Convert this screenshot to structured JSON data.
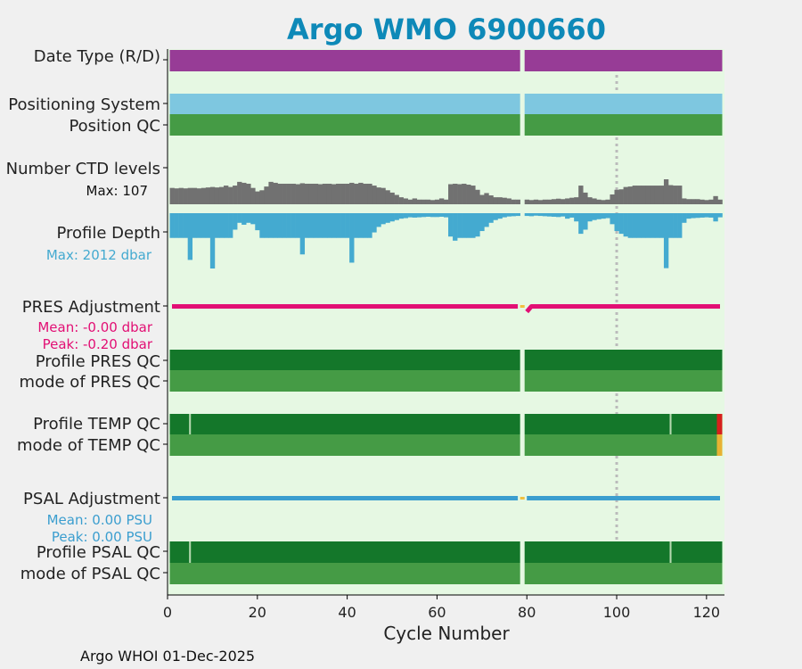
{
  "chart_data": {
    "type": "bar",
    "title": "Argo WMO 6900660",
    "xlabel": "Cycle Number",
    "xlim": [
      0,
      124
    ],
    "x_ticks": [
      "0",
      "20",
      "40",
      "60",
      "80",
      "100",
      "120"
    ],
    "reference_line_x": 100,
    "gap_cycle": 79,
    "rows": {
      "date_type": "Date Type (R/D)",
      "positioning": "Positioning System",
      "position_qc": "Position QC",
      "ctd_levels": "Number CTD levels",
      "ctd_max": "Max: 107",
      "profile_depth": "Profile Depth",
      "depth_max": "Max: 2012 dbar",
      "pres_adj": "PRES Adjustment",
      "pres_mean": "Mean: -0.00 dbar",
      "pres_peak": "Peak: -0.20 dbar",
      "profile_pres_qc": "Profile PRES QC",
      "mode_pres_qc": "mode of PRES QC",
      "profile_temp_qc": "Profile TEMP QC",
      "mode_temp_qc": "mode of TEMP QC",
      "psal_adj": "PSAL Adjustment",
      "psal_mean": "Mean: 0.00 PSU",
      "psal_peak": "Peak: 0.00 PSU",
      "profile_psal_qc": "Profile PSAL QC",
      "mode_psal_qc": "mode of PSAL QC"
    },
    "ctd_levels": [
      {
        "c": 1,
        "v": 70
      },
      {
        "c": 2,
        "v": 68
      },
      {
        "c": 3,
        "v": 70
      },
      {
        "c": 4,
        "v": 68
      },
      {
        "c": 5,
        "v": 70
      },
      {
        "c": 6,
        "v": 70
      },
      {
        "c": 7,
        "v": 68
      },
      {
        "c": 8,
        "v": 70
      },
      {
        "c": 9,
        "v": 72
      },
      {
        "c": 10,
        "v": 74
      },
      {
        "c": 11,
        "v": 72
      },
      {
        "c": 12,
        "v": 74
      },
      {
        "c": 13,
        "v": 80
      },
      {
        "c": 14,
        "v": 74
      },
      {
        "c": 15,
        "v": 80
      },
      {
        "c": 16,
        "v": 96
      },
      {
        "c": 17,
        "v": 92
      },
      {
        "c": 18,
        "v": 88
      },
      {
        "c": 19,
        "v": 70
      },
      {
        "c": 20,
        "v": 55
      },
      {
        "c": 21,
        "v": 60
      },
      {
        "c": 22,
        "v": 76
      },
      {
        "c": 23,
        "v": 96
      },
      {
        "c": 24,
        "v": 92
      },
      {
        "c": 25,
        "v": 88
      },
      {
        "c": 26,
        "v": 88
      },
      {
        "c": 27,
        "v": 88
      },
      {
        "c": 28,
        "v": 88
      },
      {
        "c": 29,
        "v": 86
      },
      {
        "c": 30,
        "v": 90
      },
      {
        "c": 31,
        "v": 88
      },
      {
        "c": 32,
        "v": 88
      },
      {
        "c": 33,
        "v": 88
      },
      {
        "c": 34,
        "v": 86
      },
      {
        "c": 35,
        "v": 88
      },
      {
        "c": 36,
        "v": 88
      },
      {
        "c": 37,
        "v": 86
      },
      {
        "c": 38,
        "v": 88
      },
      {
        "c": 39,
        "v": 88
      },
      {
        "c": 40,
        "v": 88
      },
      {
        "c": 41,
        "v": 92
      },
      {
        "c": 42,
        "v": 88
      },
      {
        "c": 43,
        "v": 92
      },
      {
        "c": 44,
        "v": 88
      },
      {
        "c": 45,
        "v": 88
      },
      {
        "c": 46,
        "v": 80
      },
      {
        "c": 47,
        "v": 72
      },
      {
        "c": 48,
        "v": 70
      },
      {
        "c": 49,
        "v": 60
      },
      {
        "c": 50,
        "v": 50
      },
      {
        "c": 51,
        "v": 40
      },
      {
        "c": 52,
        "v": 30
      },
      {
        "c": 53,
        "v": 25
      },
      {
        "c": 54,
        "v": 20
      },
      {
        "c": 55,
        "v": 25
      },
      {
        "c": 56,
        "v": 20
      },
      {
        "c": 57,
        "v": 20
      },
      {
        "c": 58,
        "v": 20
      },
      {
        "c": 59,
        "v": 18
      },
      {
        "c": 60,
        "v": 20
      },
      {
        "c": 61,
        "v": 25
      },
      {
        "c": 62,
        "v": 20
      },
      {
        "c": 63,
        "v": 86
      },
      {
        "c": 64,
        "v": 88
      },
      {
        "c": 65,
        "v": 86
      },
      {
        "c": 66,
        "v": 88
      },
      {
        "c": 67,
        "v": 84
      },
      {
        "c": 68,
        "v": 80
      },
      {
        "c": 69,
        "v": 62
      },
      {
        "c": 70,
        "v": 40
      },
      {
        "c": 71,
        "v": 48
      },
      {
        "c": 72,
        "v": 38
      },
      {
        "c": 73,
        "v": 30
      },
      {
        "c": 74,
        "v": 30
      },
      {
        "c": 75,
        "v": 28
      },
      {
        "c": 76,
        "v": 25
      },
      {
        "c": 77,
        "v": 20
      },
      {
        "c": 78,
        "v": 20
      },
      {
        "c": 80,
        "v": 20
      },
      {
        "c": 81,
        "v": 18
      },
      {
        "c": 82,
        "v": 20
      },
      {
        "c": 83,
        "v": 18
      },
      {
        "c": 84,
        "v": 20
      },
      {
        "c": 85,
        "v": 20
      },
      {
        "c": 86,
        "v": 22
      },
      {
        "c": 87,
        "v": 24
      },
      {
        "c": 88,
        "v": 22
      },
      {
        "c": 89,
        "v": 25
      },
      {
        "c": 90,
        "v": 28
      },
      {
        "c": 91,
        "v": 30
      },
      {
        "c": 92,
        "v": 80
      },
      {
        "c": 93,
        "v": 50
      },
      {
        "c": 94,
        "v": 30
      },
      {
        "c": 95,
        "v": 25
      },
      {
        "c": 96,
        "v": 20
      },
      {
        "c": 97,
        "v": 18
      },
      {
        "c": 98,
        "v": 20
      },
      {
        "c": 99,
        "v": 42
      },
      {
        "c": 100,
        "v": 62
      },
      {
        "c": 101,
        "v": 64
      },
      {
        "c": 102,
        "v": 74
      },
      {
        "c": 103,
        "v": 76
      },
      {
        "c": 104,
        "v": 80
      },
      {
        "c": 105,
        "v": 80
      },
      {
        "c": 106,
        "v": 80
      },
      {
        "c": 107,
        "v": 80
      },
      {
        "c": 108,
        "v": 80
      },
      {
        "c": 109,
        "v": 80
      },
      {
        "c": 110,
        "v": 80
      },
      {
        "c": 111,
        "v": 107
      },
      {
        "c": 112,
        "v": 82
      },
      {
        "c": 113,
        "v": 80
      },
      {
        "c": 114,
        "v": 80
      },
      {
        "c": 115,
        "v": 25
      },
      {
        "c": 116,
        "v": 22
      },
      {
        "c": 117,
        "v": 22
      },
      {
        "c": 118,
        "v": 22
      },
      {
        "c": 119,
        "v": 20
      },
      {
        "c": 120,
        "v": 18
      },
      {
        "c": 121,
        "v": 20
      },
      {
        "c": 122,
        "v": 35
      },
      {
        "c": 123,
        "v": 20
      }
    ],
    "profile_depth": [
      {
        "c": 1,
        "v": 900
      },
      {
        "c": 2,
        "v": 900
      },
      {
        "c": 3,
        "v": 900
      },
      {
        "c": 4,
        "v": 900
      },
      {
        "c": 5,
        "v": 1700
      },
      {
        "c": 6,
        "v": 900
      },
      {
        "c": 7,
        "v": 900
      },
      {
        "c": 8,
        "v": 900
      },
      {
        "c": 9,
        "v": 900
      },
      {
        "c": 10,
        "v": 2012
      },
      {
        "c": 11,
        "v": 900
      },
      {
        "c": 12,
        "v": 900
      },
      {
        "c": 13,
        "v": 900
      },
      {
        "c": 14,
        "v": 900
      },
      {
        "c": 15,
        "v": 600
      },
      {
        "c": 16,
        "v": 350
      },
      {
        "c": 17,
        "v": 420
      },
      {
        "c": 18,
        "v": 350
      },
      {
        "c": 19,
        "v": 400
      },
      {
        "c": 20,
        "v": 620
      },
      {
        "c": 21,
        "v": 900
      },
      {
        "c": 22,
        "v": 900
      },
      {
        "c": 23,
        "v": 900
      },
      {
        "c": 24,
        "v": 900
      },
      {
        "c": 25,
        "v": 900
      },
      {
        "c": 26,
        "v": 900
      },
      {
        "c": 27,
        "v": 900
      },
      {
        "c": 28,
        "v": 900
      },
      {
        "c": 29,
        "v": 900
      },
      {
        "c": 30,
        "v": 1500
      },
      {
        "c": 31,
        "v": 900
      },
      {
        "c": 32,
        "v": 900
      },
      {
        "c": 33,
        "v": 900
      },
      {
        "c": 34,
        "v": 900
      },
      {
        "c": 35,
        "v": 900
      },
      {
        "c": 36,
        "v": 900
      },
      {
        "c": 37,
        "v": 900
      },
      {
        "c": 38,
        "v": 900
      },
      {
        "c": 39,
        "v": 900
      },
      {
        "c": 40,
        "v": 900
      },
      {
        "c": 41,
        "v": 1800
      },
      {
        "c": 42,
        "v": 900
      },
      {
        "c": 43,
        "v": 900
      },
      {
        "c": 44,
        "v": 900
      },
      {
        "c": 45,
        "v": 900
      },
      {
        "c": 46,
        "v": 700
      },
      {
        "c": 47,
        "v": 500
      },
      {
        "c": 48,
        "v": 400
      },
      {
        "c": 49,
        "v": 350
      },
      {
        "c": 50,
        "v": 300
      },
      {
        "c": 51,
        "v": 250
      },
      {
        "c": 52,
        "v": 200
      },
      {
        "c": 53,
        "v": 180
      },
      {
        "c": 54,
        "v": 150
      },
      {
        "c": 55,
        "v": 160
      },
      {
        "c": 56,
        "v": 150
      },
      {
        "c": 57,
        "v": 140
      },
      {
        "c": 58,
        "v": 130
      },
      {
        "c": 59,
        "v": 140
      },
      {
        "c": 60,
        "v": 140
      },
      {
        "c": 61,
        "v": 130
      },
      {
        "c": 62,
        "v": 150
      },
      {
        "c": 63,
        "v": 850
      },
      {
        "c": 64,
        "v": 1000
      },
      {
        "c": 65,
        "v": 900
      },
      {
        "c": 66,
        "v": 900
      },
      {
        "c": 67,
        "v": 900
      },
      {
        "c": 68,
        "v": 900
      },
      {
        "c": 69,
        "v": 850
      },
      {
        "c": 70,
        "v": 650
      },
      {
        "c": 71,
        "v": 500
      },
      {
        "c": 72,
        "v": 350
      },
      {
        "c": 73,
        "v": 250
      },
      {
        "c": 74,
        "v": 200
      },
      {
        "c": 75,
        "v": 150
      },
      {
        "c": 76,
        "v": 120
      },
      {
        "c": 77,
        "v": 110
      },
      {
        "c": 78,
        "v": 100
      },
      {
        "c": 80,
        "v": 100
      },
      {
        "c": 81,
        "v": 110
      },
      {
        "c": 82,
        "v": 90
      },
      {
        "c": 83,
        "v": 100
      },
      {
        "c": 84,
        "v": 110
      },
      {
        "c": 85,
        "v": 120
      },
      {
        "c": 86,
        "v": 130
      },
      {
        "c": 87,
        "v": 140
      },
      {
        "c": 88,
        "v": 120
      },
      {
        "c": 89,
        "v": 200
      },
      {
        "c": 90,
        "v": 160
      },
      {
        "c": 91,
        "v": 300
      },
      {
        "c": 92,
        "v": 750
      },
      {
        "c": 93,
        "v": 600
      },
      {
        "c": 94,
        "v": 300
      },
      {
        "c": 95,
        "v": 250
      },
      {
        "c": 96,
        "v": 220
      },
      {
        "c": 97,
        "v": 200
      },
      {
        "c": 98,
        "v": 180
      },
      {
        "c": 99,
        "v": 400
      },
      {
        "c": 100,
        "v": 650
      },
      {
        "c": 101,
        "v": 750
      },
      {
        "c": 102,
        "v": 850
      },
      {
        "c": 103,
        "v": 900
      },
      {
        "c": 104,
        "v": 900
      },
      {
        "c": 105,
        "v": 900
      },
      {
        "c": 106,
        "v": 900
      },
      {
        "c": 107,
        "v": 900
      },
      {
        "c": 108,
        "v": 900
      },
      {
        "c": 109,
        "v": 900
      },
      {
        "c": 110,
        "v": 900
      },
      {
        "c": 111,
        "v": 2000
      },
      {
        "c": 112,
        "v": 900
      },
      {
        "c": 113,
        "v": 900
      },
      {
        "c": 114,
        "v": 900
      },
      {
        "c": 115,
        "v": 350
      },
      {
        "c": 116,
        "v": 200
      },
      {
        "c": 117,
        "v": 180
      },
      {
        "c": 118,
        "v": 170
      },
      {
        "c": 119,
        "v": 160
      },
      {
        "c": 120,
        "v": 150
      },
      {
        "c": 121,
        "v": 160
      },
      {
        "c": 122,
        "v": 300
      },
      {
        "c": 123,
        "v": 150
      }
    ],
    "pres_adjustment_points": [
      {
        "c": 1,
        "v": 0.0
      },
      {
        "c": 78,
        "v": 0.0
      },
      {
        "c": 80,
        "v": -0.2
      },
      {
        "c": 81,
        "v": 0.0
      },
      {
        "c": 123,
        "v": 0.0
      }
    ],
    "psal_adjustment_points": [
      {
        "c": 1,
        "v": 0.0
      },
      {
        "c": 78,
        "v": 0.0
      },
      {
        "c": 80,
        "v": 0.0
      },
      {
        "c": 123,
        "v": 0.0
      }
    ],
    "temp_qc_light_cycles": [
      5,
      112
    ],
    "psal_qc_light_cycles": [
      5,
      112
    ],
    "temp_qc_flag_cycle": 123,
    "colors": {
      "title": "#0e89b8",
      "plot_bg": "#e6f8e3",
      "date_type": "#973c96",
      "positioning": "#7ec7e0",
      "qc_good": "#459b45",
      "qc_dark": "#14772a",
      "qc_light": "#b6d9b0",
      "ctd": "#717171",
      "depth": "#44aad0",
      "pres_line": "#e20f74",
      "psal_line": "#3b9ecf",
      "gap_marker": "#f0c040",
      "bad_flag": "#d6201c",
      "probably_bad_flag": "#e8b232",
      "ref_line": "#bbbbbb"
    },
    "footer": "Argo WHOI 01-Dec-2025"
  }
}
